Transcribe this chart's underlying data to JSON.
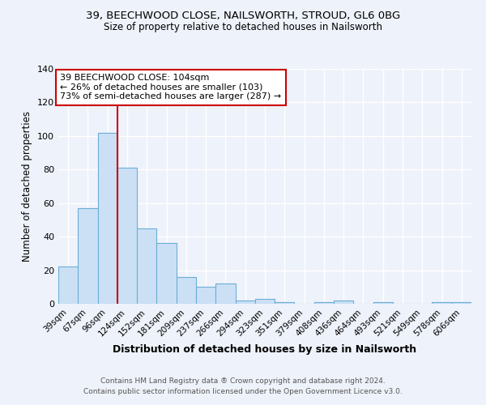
{
  "title1": "39, BEECHWOOD CLOSE, NAILSWORTH, STROUD, GL6 0BG",
  "title2": "Size of property relative to detached houses in Nailsworth",
  "xlabel": "Distribution of detached houses by size in Nailsworth",
  "ylabel": "Number of detached properties",
  "bar_labels": [
    "39sqm",
    "67sqm",
    "96sqm",
    "124sqm",
    "152sqm",
    "181sqm",
    "209sqm",
    "237sqm",
    "266sqm",
    "294sqm",
    "323sqm",
    "351sqm",
    "379sqm",
    "408sqm",
    "436sqm",
    "464sqm",
    "493sqm",
    "521sqm",
    "549sqm",
    "578sqm",
    "606sqm"
  ],
  "bar_values": [
    22,
    57,
    102,
    81,
    45,
    36,
    16,
    10,
    12,
    2,
    3,
    1,
    0,
    1,
    2,
    0,
    1,
    0,
    0,
    1,
    1
  ],
  "bar_color": "#cce0f5",
  "bar_edge_color": "#6aaed6",
  "red_line_x": 2.5,
  "red_line_color": "#cc0000",
  "annotation_text": "39 BEECHWOOD CLOSE: 104sqm\n← 26% of detached houses are smaller (103)\n73% of semi-detached houses are larger (287) →",
  "annotation_box_color": "#ffffff",
  "annotation_box_edge": "#cc0000",
  "ylim": [
    0,
    140
  ],
  "yticks": [
    0,
    20,
    40,
    60,
    80,
    100,
    120,
    140
  ],
  "footer1": "Contains HM Land Registry data ® Crown copyright and database right 2024.",
  "footer2": "Contains public sector information licensed under the Open Government Licence v3.0.",
  "background_color": "#eef2fa",
  "plot_background": "#eef2fa"
}
